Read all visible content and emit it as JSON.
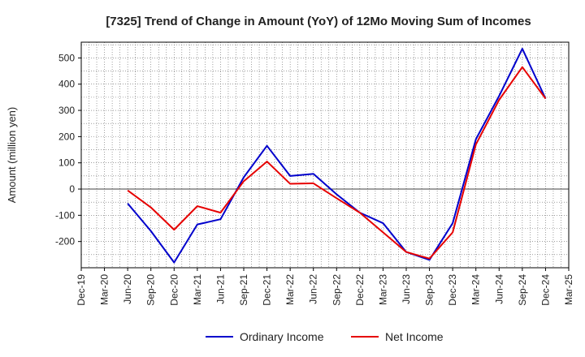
{
  "chart_data": {
    "type": "line",
    "title": "[7325]  Trend of Change in Amount (YoY) of 12Mo Moving Sum of Incomes",
    "xlabel": "",
    "ylabel": "Amount (million yen)",
    "categories": [
      "Dec-19",
      "Mar-20",
      "Jun-20",
      "Sep-20",
      "Dec-20",
      "Mar-21",
      "Jun-21",
      "Sep-21",
      "Dec-21",
      "Mar-22",
      "Jun-22",
      "Sep-22",
      "Dec-22",
      "Mar-23",
      "Jun-23",
      "Sep-23",
      "Dec-23",
      "Mar-24",
      "Jun-24",
      "Sep-24",
      "Dec-24",
      "Mar-25"
    ],
    "ylim": [
      -300,
      560
    ],
    "yticks": [
      -200,
      -100,
      0,
      100,
      200,
      300,
      400,
      500
    ],
    "grid": true,
    "legend_position": "bottom",
    "series": [
      {
        "name": "Ordinary Income",
        "color": "#0000cc",
        "values": [
          null,
          null,
          -55,
          -160,
          -280,
          -135,
          -115,
          45,
          165,
          50,
          58,
          -20,
          -90,
          -130,
          -240,
          -270,
          -130,
          190,
          355,
          535,
          345,
          null
        ]
      },
      {
        "name": "Net Income",
        "color": "#e60000",
        "values": [
          null,
          null,
          -5,
          -70,
          -155,
          -65,
          -90,
          30,
          105,
          20,
          22,
          -35,
          -90,
          -165,
          -240,
          -265,
          -165,
          170,
          340,
          465,
          345,
          null
        ]
      }
    ]
  }
}
